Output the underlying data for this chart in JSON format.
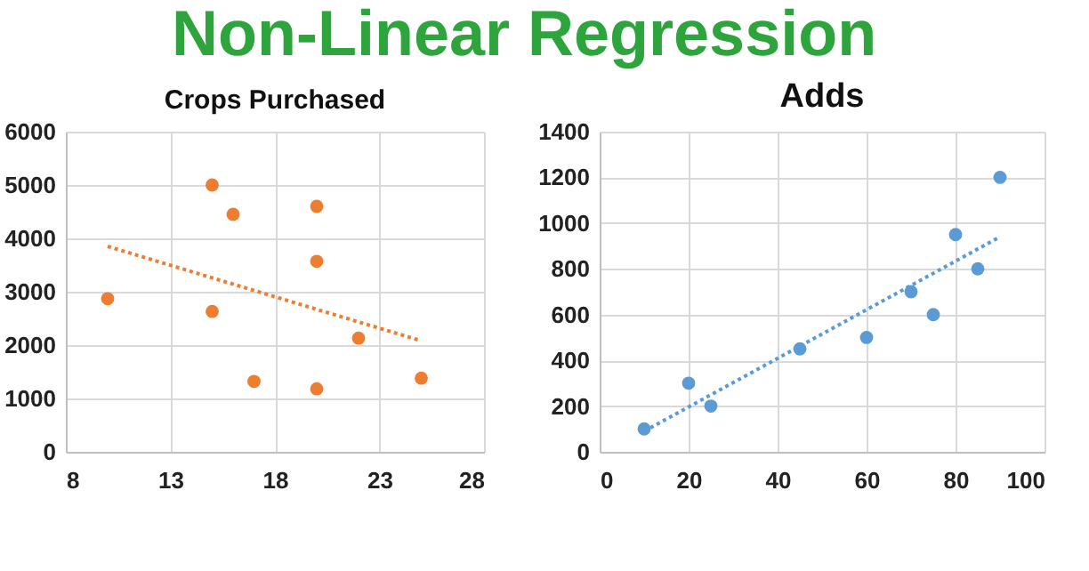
{
  "chart_data": [
    {
      "type": "scatter",
      "title": "Crops Purchased",
      "annotations": [
        "Non-Linear Regression"
      ],
      "grid": true,
      "xlim": [
        8,
        28
      ],
      "xticks": [
        8,
        13,
        18,
        23,
        28
      ],
      "ylim": [
        0,
        6000
      ],
      "yticks": [
        0,
        1000,
        2000,
        3000,
        4000,
        5000,
        6000
      ],
      "series": [
        {
          "type": "scatter",
          "marker": "circle",
          "color": "#ed7d31",
          "x": [
            10,
            15,
            15,
            16,
            17,
            20,
            20,
            20,
            22,
            25
          ],
          "values": [
            2870,
            5000,
            2630,
            4450,
            1320,
            4600,
            3570,
            1180,
            2130,
            1380
          ]
        },
        {
          "type": "line",
          "marker": "none",
          "color": "#ed7d31",
          "line_style": "dotted",
          "x": [
            10,
            25
          ],
          "values": [
            3850,
            2080
          ]
        }
      ]
    },
    {
      "type": "scatter",
      "title": "Adds",
      "grid": true,
      "xlim": [
        0,
        100
      ],
      "xticks": [
        0,
        20,
        40,
        60,
        80,
        100
      ],
      "ylim": [
        0,
        1400
      ],
      "yticks": [
        0,
        200,
        400,
        600,
        800,
        1000,
        1200,
        1400
      ],
      "series": [
        {
          "type": "scatter",
          "marker": "circle",
          "color": "#5b9bd5",
          "x": [
            10,
            20,
            25,
            45,
            60,
            70,
            75,
            80,
            85,
            90
          ],
          "values": [
            100,
            300,
            200,
            450,
            500,
            700,
            600,
            950,
            800,
            1200
          ]
        },
        {
          "type": "line",
          "marker": "none",
          "color": "#5b9bd5",
          "line_style": "dotted",
          "x": [
            10,
            90
          ],
          "values": [
            90,
            940
          ]
        }
      ]
    }
  ]
}
